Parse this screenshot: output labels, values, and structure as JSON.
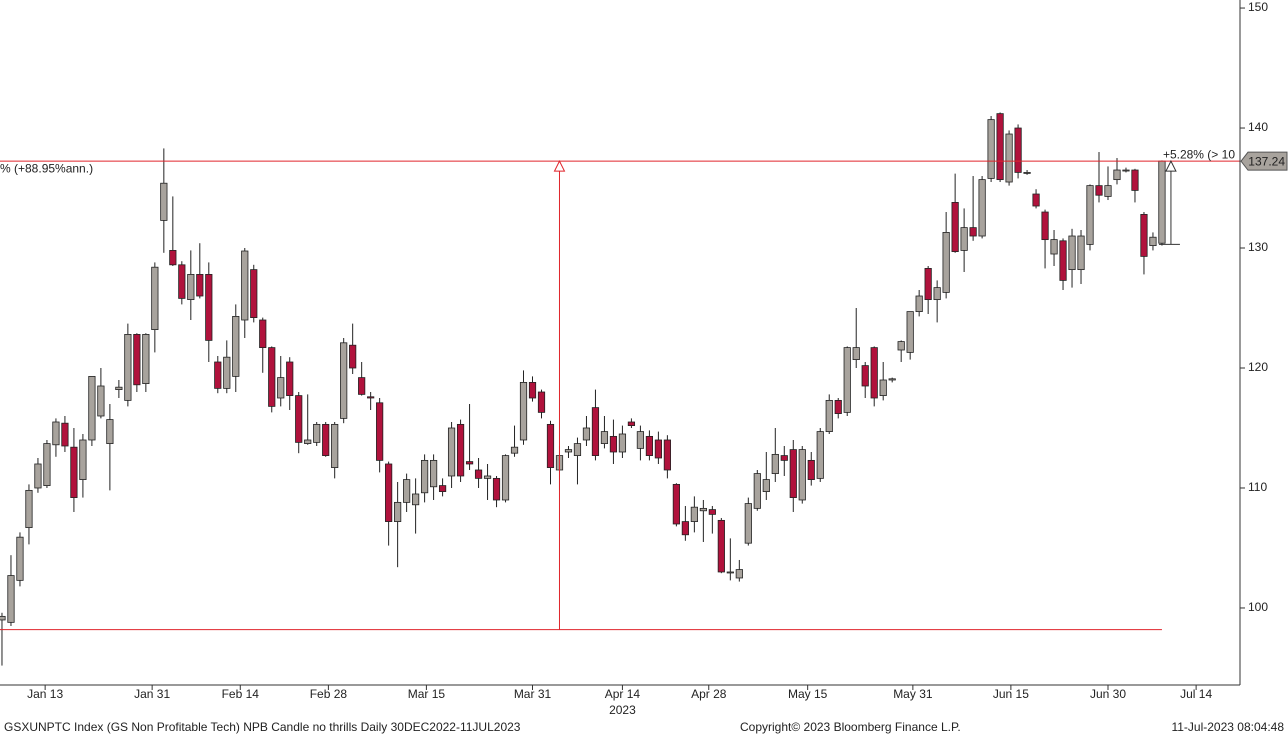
{
  "chart_data": {
    "type": "candlestick",
    "open": [
      99.0,
      98.8,
      102.3,
      106.7,
      110.0,
      110.2,
      113.6,
      115.4,
      113.4,
      110.7,
      114.0,
      116.0,
      113.7,
      118.2,
      117.3,
      122.8,
      118.7,
      123.2,
      132.3,
      129.8,
      128.6,
      125.7,
      127.8,
      127.8,
      120.5,
      118.3,
      119.3,
      124.0,
      128.2,
      124.0,
      121.7,
      117.5,
      120.5,
      117.7,
      113.7,
      113.8,
      115.3,
      111.7,
      115.8,
      121.9,
      119.2,
      117.6,
      117.1,
      112.0,
      107.2,
      108.8,
      108.6,
      109.6,
      110.1,
      110.2,
      111.0,
      115.3,
      112.2,
      111.5,
      110.8,
      110.8,
      109.0,
      112.9,
      114.0,
      118.8,
      118.0,
      115.3,
      111.5,
      113.0,
      112.7,
      114.0,
      116.7,
      113.7,
      114.3,
      113.0,
      115.5,
      113.3,
      114.3,
      114.0,
      114.0,
      110.3,
      107.2,
      107.2,
      108.1,
      108.2,
      107.3,
      103.0,
      102.5,
      105.4,
      108.3,
      109.7,
      111.2,
      112.7,
      113.2,
      109.0,
      112.3,
      110.8,
      114.7,
      117.3,
      116.3,
      120.7,
      120.2,
      121.7,
      117.7,
      119.0,
      121.5,
      121.3,
      124.7,
      128.3,
      125.7,
      126.3,
      133.8,
      129.8,
      131.7,
      131.0,
      135.8,
      141.2,
      135.5,
      140.0,
      136.3,
      134.5,
      133.0,
      129.5,
      130.6,
      128.2,
      128.2,
      130.3,
      135.2,
      134.3,
      135.7,
      136.5,
      136.5,
      132.8,
      130.2,
      130.4
    ],
    "high": [
      99.6,
      104.4,
      106.3,
      110.3,
      112.5,
      114.0,
      115.8,
      116.0,
      115.0,
      114.5,
      119.3,
      120.0,
      117.0,
      119.0,
      123.7,
      122.9,
      122.9,
      128.8,
      138.3,
      134.3,
      128.9,
      129.8,
      130.4,
      128.8,
      121.0,
      122.3,
      125.3,
      130.0,
      128.6,
      124.2,
      121.8,
      121.0,
      120.9,
      118.0,
      117.8,
      115.5,
      115.5,
      115.5,
      122.5,
      123.7,
      120.5,
      118.0,
      117.5,
      112.2,
      110.5,
      111.2,
      110.8,
      112.8,
      112.8,
      110.8,
      115.5,
      115.7,
      117.0,
      112.5,
      112.0,
      111.0,
      112.8,
      115.2,
      119.8,
      119.3,
      118.2,
      115.6,
      113.5,
      113.5,
      114.2,
      116.0,
      118.2,
      116.0,
      115.7,
      115.2,
      115.8,
      115.2,
      114.8,
      114.7,
      114.4,
      110.4,
      108.5,
      109.3,
      109.0,
      108.5,
      107.5,
      105.8,
      104.0,
      109.2,
      111.5,
      113.0,
      115.0,
      113.5,
      114.0,
      113.5,
      113.0,
      115.0,
      117.8,
      117.5,
      121.8,
      125.0,
      120.5,
      121.8,
      120.5,
      119.2,
      122.3,
      124.7,
      126.5,
      128.5,
      127.3,
      133.0,
      136.2,
      133.3,
      136.0,
      136.0,
      141.0,
      141.3,
      139.8,
      140.3,
      136.5,
      134.9,
      133.2,
      131.5,
      130.8,
      131.6,
      131.5,
      135.3,
      138.0,
      136.8,
      137.5,
      136.7,
      136.6,
      133.0,
      131.3,
      137.3
    ],
    "low": [
      95.2,
      98.5,
      101.8,
      105.3,
      109.6,
      110.0,
      112.6,
      113.0,
      108.0,
      109.2,
      113.5,
      115.8,
      109.8,
      117.5,
      116.8,
      118.0,
      118.0,
      121.3,
      129.6,
      128.5,
      125.3,
      124.0,
      125.8,
      120.5,
      117.9,
      117.9,
      118.0,
      122.5,
      123.8,
      119.6,
      116.3,
      116.8,
      116.5,
      112.9,
      113.6,
      113.5,
      112.6,
      110.8,
      115.4,
      119.5,
      117.7,
      116.5,
      111.3,
      105.2,
      103.4,
      108.0,
      106.2,
      108.8,
      109.0,
      109.3,
      110.0,
      110.5,
      111.5,
      110.0,
      109.0,
      108.4,
      108.8,
      112.6,
      113.6,
      117.2,
      115.8,
      110.3,
      109.8,
      112.5,
      110.3,
      113.5,
      112.3,
      113.3,
      112.0,
      112.5,
      115.0,
      112.3,
      112.3,
      112.0,
      110.8,
      106.8,
      105.6,
      106.3,
      105.5,
      106.2,
      102.9,
      102.3,
      102.2,
      105.2,
      108.1,
      109.0,
      110.5,
      111.0,
      108.0,
      108.7,
      110.2,
      110.5,
      114.5,
      115.8,
      116.0,
      120.0,
      117.5,
      116.8,
      117.3,
      118.8,
      120.5,
      120.7,
      124.3,
      124.5,
      123.8,
      125.8,
      129.6,
      128.0,
      130.6,
      130.8,
      135.5,
      135.5,
      135.2,
      135.8,
      136.1,
      133.3,
      128.3,
      128.5,
      126.5,
      126.7,
      127.0,
      129.8,
      133.8,
      134.0,
      135.3,
      136.3,
      133.8,
      127.8,
      129.8,
      130.2
    ],
    "close": [
      99.3,
      102.7,
      105.9,
      109.8,
      112.0,
      113.7,
      115.5,
      113.5,
      109.2,
      114.0,
      119.3,
      118.5,
      115.7,
      118.4,
      122.8,
      118.6,
      122.8,
      128.4,
      135.4,
      128.6,
      125.8,
      127.8,
      126.0,
      122.3,
      118.3,
      120.9,
      124.3,
      129.75,
      124.2,
      121.7,
      116.8,
      119.2,
      117.7,
      113.8,
      114.0,
      115.3,
      112.7,
      115.3,
      122.1,
      120.0,
      117.8,
      117.5,
      112.3,
      107.2,
      108.8,
      110.7,
      109.5,
      112.3,
      112.3,
      109.7,
      115.0,
      111.0,
      112.0,
      110.8,
      111.0,
      109.0,
      112.7,
      113.4,
      118.8,
      117.5,
      116.3,
      111.7,
      112.7,
      113.2,
      113.7,
      115.0,
      112.7,
      114.7,
      113.0,
      114.5,
      115.2,
      114.7,
      112.7,
      112.5,
      111.5,
      107.0,
      106.1,
      108.4,
      108.3,
      107.8,
      103.0,
      103.0,
      103.2,
      108.7,
      111.2,
      110.7,
      112.8,
      112.3,
      109.2,
      113.2,
      110.7,
      114.7,
      117.3,
      116.2,
      121.7,
      121.7,
      118.5,
      117.5,
      119.0,
      119.1,
      122.2,
      124.7,
      126.0,
      125.7,
      126.7,
      131.3,
      129.7,
      131.7,
      131.0,
      135.7,
      140.7,
      135.7,
      139.5,
      136.3,
      136.3,
      133.5,
      130.7,
      130.7,
      127.3,
      131.0,
      131.0,
      135.2,
      134.4,
      135.2,
      136.5,
      136.5,
      134.8,
      129.3,
      130.9,
      137.24
    ],
    "up_color": "#a8a39d",
    "down_color": "#b0123c",
    "annotation_color": "#e0242b",
    "xlim": [
      -0.22,
      137.68
    ],
    "xticks": [
      {
        "value": 4.8,
        "label": "Jan 13"
      },
      {
        "value": 16.7,
        "label": "Jan 31"
      },
      {
        "value": 26.5,
        "label": "Feb 14"
      },
      {
        "value": 36.3,
        "label": "Feb 28"
      },
      {
        "value": 47.2,
        "label": "Mar 15"
      },
      {
        "value": 59.0,
        "label": "Mar 31"
      },
      {
        "value": 69.0,
        "label": "Apr 14"
      },
      {
        "value": 78.6,
        "label": "Apr 28"
      },
      {
        "value": 89.6,
        "label": "May 15"
      },
      {
        "value": 101.3,
        "label": "May 31"
      },
      {
        "value": 112.2,
        "label": "Jun 15"
      },
      {
        "value": 123.0,
        "label": "Jun 30"
      },
      {
        "value": 132.8,
        "label": "Jul 14"
      }
    ],
    "year_label": "2023",
    "ylim": [
      93.58,
      150.67
    ],
    "yticks": [
      100,
      110,
      120,
      130,
      140,
      150
    ],
    "annotations": [
      {
        "label": "% (+88.95%ann.)",
        "from": 98.2,
        "to": 137.24,
        "x": 62
      },
      {
        "label": "+5.28% (> 10",
        "from": 130.3,
        "to": 137.24,
        "x": 130
      }
    ],
    "footer_left": "GSXUNPTC Index (GS Non Profitable Tech) NPB Candle no thrills  Daily 30DEC2022-11JUL2023",
    "footer_center": "Copyright© 2023 Bloomberg Finance L.P.",
    "footer_right": "11-Jul-2023 08:04:48"
  }
}
